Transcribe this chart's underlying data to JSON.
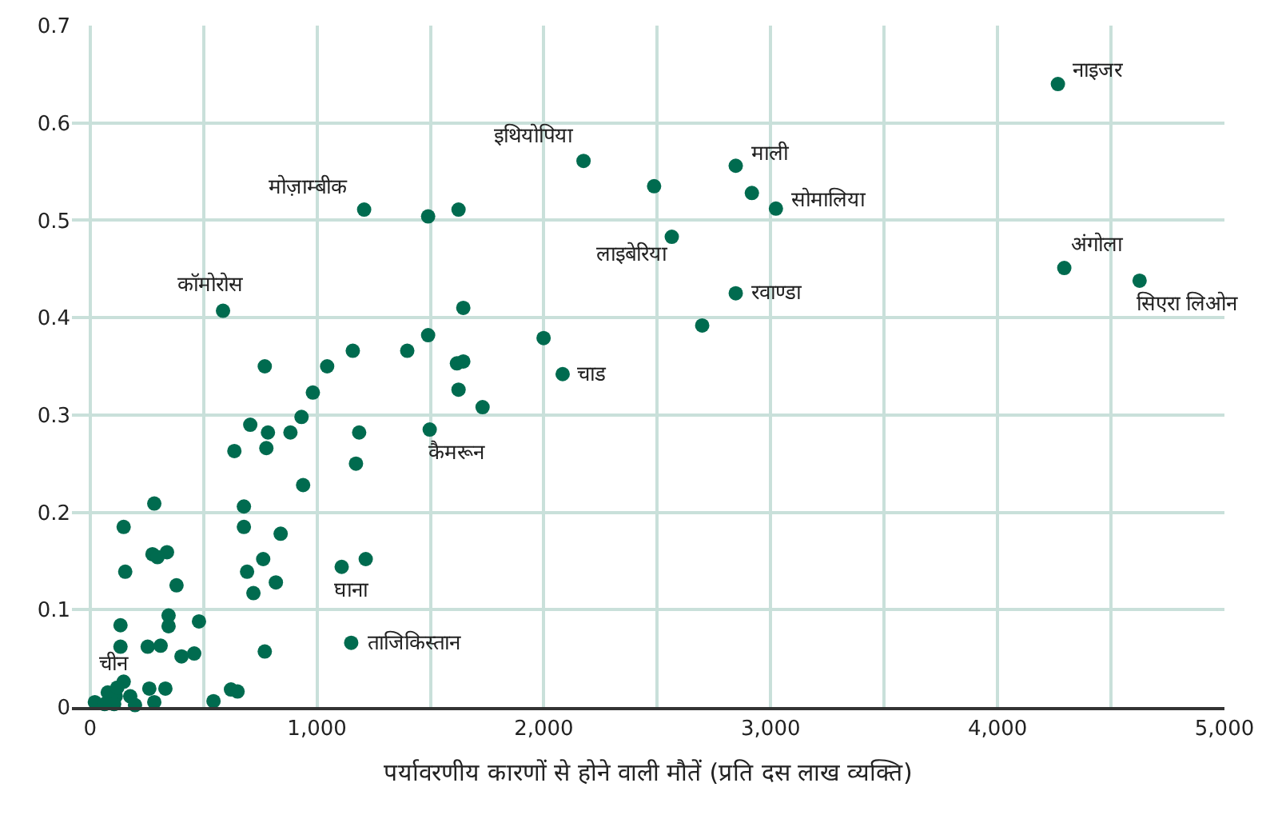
{
  "chart_data": {
    "type": "scatter",
    "xlabel": "पर्यावरणीय कारणों से होने वाली मौतें (प्रति दस लाख व्यक्ति)",
    "x": [
      4266,
      4294,
      4626,
      2846,
      3023,
      2917,
      2486,
      2175,
      2564,
      2846,
      2698,
      2083,
      1999,
      1208,
      1490,
      1624,
      1645,
      1490,
      1398,
      1617,
      1645,
      1624,
      1730,
      1497,
      1158,
      1045,
      982,
      932,
      883,
      770,
      784,
      777,
      706,
      636,
      1186,
      1172,
      586,
      939,
      678,
      678,
      840,
      283,
      148,
      763,
      692,
      720,
      819,
      155,
      1109,
      1215,
      1151,
      275,
      339,
      297,
      381,
      134,
      346,
      346,
      480,
      134,
      254,
      311,
      403,
      459,
      770,
      21,
      148,
      78,
      113,
      177,
      198,
      106,
      64,
      261,
      332,
      283,
      544,
      621,
      650,
      120
    ],
    "series": [
      {
        "color": "#006b4f",
        "values": [
          0.64,
          0.451,
          0.438,
          0.556,
          0.512,
          0.528,
          0.535,
          0.561,
          0.483,
          0.425,
          0.392,
          0.342,
          0.379,
          0.511,
          0.504,
          0.511,
          0.41,
          0.382,
          0.366,
          0.353,
          0.355,
          0.326,
          0.308,
          0.285,
          0.366,
          0.35,
          0.323,
          0.298,
          0.282,
          0.35,
          0.282,
          0.266,
          0.29,
          0.263,
          0.282,
          0.25,
          0.407,
          0.228,
          0.206,
          0.185,
          0.178,
          0.209,
          0.185,
          0.152,
          0.139,
          0.117,
          0.128,
          0.139,
          0.144,
          0.152,
          0.066,
          0.157,
          0.159,
          0.154,
          0.125,
          0.084,
          0.094,
          0.083,
          0.088,
          0.062,
          0.062,
          0.063,
          0.052,
          0.055,
          0.057,
          0.005,
          0.026,
          0.015,
          0.011,
          0.011,
          0.002,
          0.003,
          0.003,
          0.019,
          0.019,
          0.005,
          0.006,
          0.018,
          0.016,
          0.02
        ]
      }
    ],
    "xlim": [
      -80,
      5000
    ],
    "xticks": [
      0,
      {
        "value": 500,
        "label": null
      },
      {
        "value": 1000,
        "label": "1,000"
      },
      {
        "value": 1500,
        "label": null
      },
      {
        "value": 2000,
        "label": "2,000"
      },
      {
        "value": 2500,
        "label": null
      },
      {
        "value": 3000,
        "label": "3,000"
      },
      {
        "value": 3500,
        "label": null
      },
      {
        "value": 4000,
        "label": "4,000"
      },
      {
        "value": 4500,
        "label": null
      },
      {
        "value": 5000,
        "label": "5,000"
      }
    ],
    "ylim": [
      0,
      0.7
    ],
    "yticks": [
      0,
      0.1,
      0.2,
      0.3,
      0.4,
      0.5,
      0.6,
      0.7
    ],
    "grid": true,
    "marker": "circle",
    "annotations": [
      {
        "text": "नाइजर",
        "x": 4266,
        "y": 0.64
      },
      {
        "text": "अंगोला",
        "x": 4294,
        "y": 0.451
      },
      {
        "text": "सिएरा लिओन",
        "x": 4626,
        "y": 0.438
      },
      {
        "text": "माली",
        "x": 2846,
        "y": 0.556
      },
      {
        "text": "सोमालिया",
        "x": 3023,
        "y": 0.512
      },
      {
        "text": "इथियोपिया",
        "x": 2175,
        "y": 0.561
      },
      {
        "text": "लाइबेरिया",
        "x": 2564,
        "y": 0.483
      },
      {
        "text": "रवाण्डा",
        "x": 2846,
        "y": 0.425
      },
      {
        "text": "चाड",
        "x": 2083,
        "y": 0.342
      },
      {
        "text": "मोज़ाम्बीक",
        "x": 1208,
        "y": 0.511
      },
      {
        "text": "कैमरून",
        "x": 1497,
        "y": 0.285
      },
      {
        "text": "कॉमोरोस",
        "x": 586,
        "y": 0.407
      },
      {
        "text": "घाना",
        "x": 1109,
        "y": 0.144
      },
      {
        "text": "ताजिकिस्तान",
        "x": 1151,
        "y": 0.066
      },
      {
        "text": "चीन",
        "x": 148,
        "y": 0.026
      }
    ]
  }
}
